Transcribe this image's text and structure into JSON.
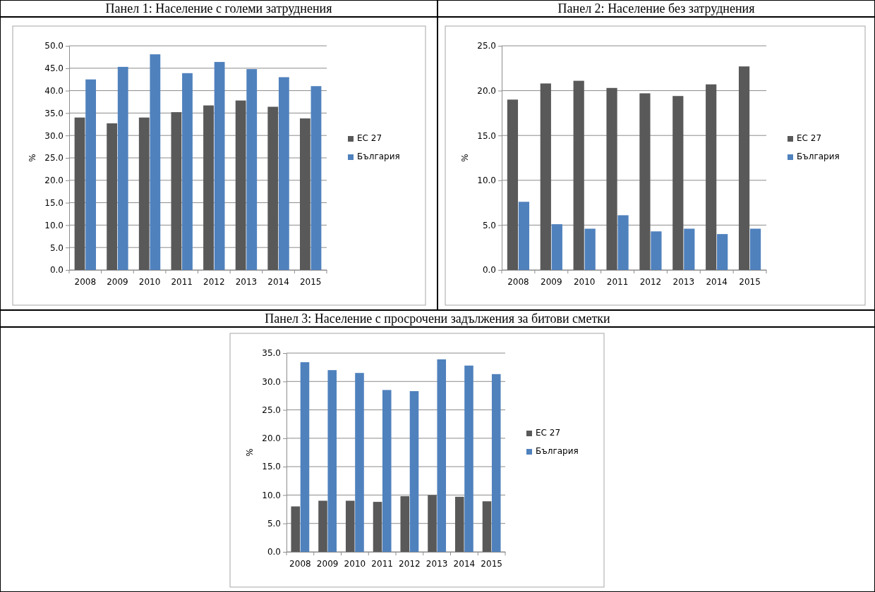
{
  "chart_data": [
    {
      "type": "bar",
      "title": "Панел 1: Население с големи затруднения",
      "ylabel": "%",
      "categories": [
        "2008",
        "2009",
        "2010",
        "2011",
        "2012",
        "2013",
        "2014",
        "2015"
      ],
      "series": [
        {
          "name": "ЕС 27",
          "color": "#595959",
          "values": [
            34.0,
            32.7,
            34.0,
            35.2,
            36.7,
            37.8,
            36.4,
            33.8
          ]
        },
        {
          "name": "България",
          "color": "#4f81bd",
          "values": [
            42.5,
            45.3,
            48.1,
            43.9,
            46.4,
            44.8,
            43.0,
            41.0
          ]
        }
      ],
      "ylim": [
        0,
        50
      ],
      "yticks": [
        {
          "value": 0,
          "label": "0.0"
        },
        {
          "value": 5,
          "label": "5.0"
        },
        {
          "value": 10,
          "label": "10.0"
        },
        {
          "value": 15,
          "label": "15.0"
        },
        {
          "value": 20,
          "label": "20.0"
        },
        {
          "value": 25,
          "label": "25.0"
        },
        {
          "value": 30,
          "label": "30.0"
        },
        {
          "value": 35,
          "label": "35.0"
        },
        {
          "value": 40,
          "label": "40.0"
        },
        {
          "value": 45,
          "label": "45.0"
        },
        {
          "value": 50,
          "label": "50.0"
        }
      ],
      "grid": "y",
      "legend": "right"
    },
    {
      "type": "bar",
      "title": "Панел 2: Население без затруднения",
      "ylabel": "%",
      "categories": [
        "2008",
        "2009",
        "2010",
        "2011",
        "2012",
        "2013",
        "2014",
        "2015"
      ],
      "series": [
        {
          "name": "ЕС 27",
          "color": "#595959",
          "values": [
            19.0,
            20.8,
            21.1,
            20.3,
            19.7,
            19.4,
            20.7,
            22.7
          ]
        },
        {
          "name": "България",
          "color": "#4f81bd",
          "values": [
            7.6,
            5.1,
            4.6,
            6.1,
            4.3,
            4.6,
            4.0,
            4.6
          ]
        }
      ],
      "ylim": [
        0,
        25
      ],
      "yticks": [
        {
          "value": 0,
          "label": "0.0"
        },
        {
          "value": 5,
          "label": "5.0"
        },
        {
          "value": 10,
          "label": "10.0"
        },
        {
          "value": 15,
          "label": "15.0"
        },
        {
          "value": 20,
          "label": "20.0"
        },
        {
          "value": 25,
          "label": "25.0"
        }
      ],
      "grid": "y",
      "legend": "right"
    },
    {
      "type": "bar",
      "title": "Панел 3: Население с просрочени задължения за битови сметки",
      "ylabel": "%",
      "categories": [
        "2008",
        "2009",
        "2010",
        "2011",
        "2012",
        "2013",
        "2014",
        "2015"
      ],
      "series": [
        {
          "name": "ЕС 27",
          "color": "#595959",
          "values": [
            8.0,
            9.0,
            9.0,
            8.8,
            9.8,
            10.0,
            9.7,
            8.9
          ]
        },
        {
          "name": "България",
          "color": "#4f81bd",
          "values": [
            33.4,
            32.0,
            31.5,
            28.5,
            28.3,
            33.9,
            32.8,
            31.3
          ]
        }
      ],
      "ylim": [
        0,
        35
      ],
      "yticks": [
        {
          "value": 0,
          "label": "0.0"
        },
        {
          "value": 5,
          "label": "5.0"
        },
        {
          "value": 10,
          "label": "10.0"
        },
        {
          "value": 15,
          "label": "15.0"
        },
        {
          "value": 20,
          "label": "20.0"
        },
        {
          "value": 25,
          "label": "25.0"
        },
        {
          "value": 30,
          "label": "30.0"
        },
        {
          "value": 35,
          "label": "35.0"
        }
      ],
      "grid": "y",
      "legend": "right"
    }
  ]
}
